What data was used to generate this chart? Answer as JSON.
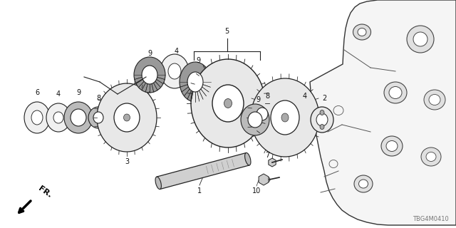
{
  "bg_color": "#ffffff",
  "fig_width": 6.4,
  "fig_height": 3.2,
  "dpi": 100,
  "part_code": "TBG4M0410",
  "line_color": "#222222",
  "line_color2": "#555555"
}
